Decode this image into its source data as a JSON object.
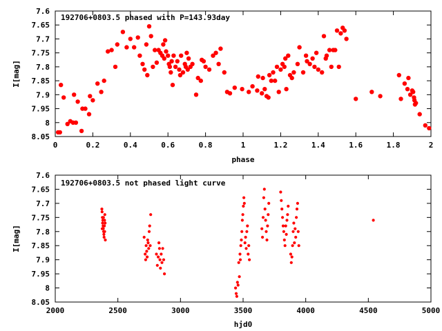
{
  "chart_data": [
    {
      "type": "scatter",
      "title": "192706+0803.5 phased with P=143.93day",
      "xlabel": "phase",
      "ylabel": "I[mag]",
      "xlim": [
        0,
        2
      ],
      "ylim": [
        8.05,
        7.6
      ],
      "y_inverted": true,
      "grid": false,
      "legend": "none",
      "marker": "filled-circle",
      "color": "#ff0000",
      "x_ticks": [
        "0",
        "0.2",
        "0.4",
        "0.6",
        "0.8",
        "1",
        "1.2",
        "1.4",
        "1.6",
        "1.8",
        "2"
      ],
      "y_ticks": [
        "7.6",
        "7.65",
        "7.7",
        "7.75",
        "7.8",
        "7.85",
        "7.9",
        "7.95",
        "8",
        "8.05"
      ],
      "points": [
        [
          0.015,
          8.035
        ],
        [
          0.025,
          8.035
        ],
        [
          0.03,
          7.865
        ],
        [
          0.045,
          7.91
        ],
        [
          0.065,
          8.005
        ],
        [
          0.08,
          7.995
        ],
        [
          0.095,
          8.0
        ],
        [
          0.1,
          7.9
        ],
        [
          0.11,
          8.0
        ],
        [
          0.12,
          7.925
        ],
        [
          0.14,
          8.03
        ],
        [
          0.145,
          7.95
        ],
        [
          0.16,
          7.95
        ],
        [
          0.18,
          7.97
        ],
        [
          0.185,
          7.905
        ],
        [
          0.2,
          7.92
        ],
        [
          0.225,
          7.86
        ],
        [
          0.245,
          7.89
        ],
        [
          0.26,
          7.85
        ],
        [
          0.28,
          7.745
        ],
        [
          0.3,
          7.74
        ],
        [
          0.32,
          7.8
        ],
        [
          0.33,
          7.72
        ],
        [
          0.36,
          7.675
        ],
        [
          0.38,
          7.73
        ],
        [
          0.4,
          7.7
        ],
        [
          0.42,
          7.73
        ],
        [
          0.44,
          7.695
        ],
        [
          0.45,
          7.76
        ],
        [
          0.465,
          7.79
        ],
        [
          0.475,
          7.81
        ],
        [
          0.485,
          7.72
        ],
        [
          0.49,
          7.83
        ],
        [
          0.5,
          7.655
        ],
        [
          0.51,
          7.69
        ],
        [
          0.52,
          7.8
        ],
        [
          0.53,
          7.74
        ],
        [
          0.54,
          7.785
        ],
        [
          0.55,
          7.74
        ],
        [
          0.56,
          7.75
        ],
        [
          0.57,
          7.76
        ],
        [
          0.575,
          7.72
        ],
        [
          0.58,
          7.77
        ],
        [
          0.585,
          7.705
        ],
        [
          0.59,
          7.745
        ],
        [
          0.6,
          7.76
        ],
        [
          0.605,
          7.79
        ],
        [
          0.61,
          7.8
        ],
        [
          0.615,
          7.82
        ],
        [
          0.62,
          7.78
        ],
        [
          0.625,
          7.865
        ],
        [
          0.63,
          7.76
        ],
        [
          0.64,
          7.8
        ],
        [
          0.65,
          7.78
        ],
        [
          0.66,
          7.81
        ],
        [
          0.665,
          7.83
        ],
        [
          0.67,
          7.76
        ],
        [
          0.68,
          7.82
        ],
        [
          0.69,
          7.79
        ],
        [
          0.695,
          7.8
        ],
        [
          0.7,
          7.75
        ],
        [
          0.705,
          7.81
        ],
        [
          0.71,
          7.77
        ],
        [
          0.72,
          7.8
        ],
        [
          0.73,
          7.79
        ],
        [
          0.75,
          7.9
        ],
        [
          0.76,
          7.84
        ],
        [
          0.775,
          7.85
        ],
        [
          0.78,
          7.775
        ],
        [
          0.79,
          7.78
        ],
        [
          0.8,
          7.8
        ],
        [
          0.82,
          7.81
        ],
        [
          0.84,
          7.76
        ],
        [
          0.855,
          7.75
        ],
        [
          0.87,
          7.79
        ],
        [
          0.88,
          7.735
        ],
        [
          0.9,
          7.82
        ],
        [
          0.915,
          7.89
        ],
        [
          0.93,
          7.895
        ],
        [
          0.955,
          7.875
        ],
        [
          0.995,
          7.88
        ],
        [
          1.03,
          7.89
        ],
        [
          1.05,
          7.87
        ],
        [
          1.075,
          7.885
        ],
        [
          1.08,
          7.835
        ],
        [
          1.1,
          7.895
        ],
        [
          1.105,
          7.84
        ],
        [
          1.115,
          7.88
        ],
        [
          1.125,
          7.905
        ],
        [
          1.135,
          7.91
        ],
        [
          1.14,
          7.83
        ],
        [
          1.15,
          7.85
        ],
        [
          1.16,
          7.82
        ],
        [
          1.17,
          7.85
        ],
        [
          1.18,
          7.8
        ],
        [
          1.19,
          7.89
        ],
        [
          1.2,
          7.81
        ],
        [
          1.21,
          7.79
        ],
        [
          1.22,
          7.8
        ],
        [
          1.225,
          7.77
        ],
        [
          1.23,
          7.88
        ],
        [
          1.24,
          7.76
        ],
        [
          1.25,
          7.83
        ],
        [
          1.26,
          7.84
        ],
        [
          1.27,
          7.82
        ],
        [
          1.29,
          7.79
        ],
        [
          1.3,
          7.73
        ],
        [
          1.32,
          7.82
        ],
        [
          1.335,
          7.76
        ],
        [
          1.34,
          7.78
        ],
        [
          1.355,
          7.79
        ],
        [
          1.37,
          7.77
        ],
        [
          1.38,
          7.8
        ],
        [
          1.39,
          7.75
        ],
        [
          1.4,
          7.81
        ],
        [
          1.42,
          7.82
        ],
        [
          1.43,
          7.69
        ],
        [
          1.44,
          7.77
        ],
        [
          1.445,
          7.76
        ],
        [
          1.46,
          7.74
        ],
        [
          1.47,
          7.8
        ],
        [
          1.48,
          7.74
        ],
        [
          1.49,
          7.74
        ],
        [
          1.5,
          7.67
        ],
        [
          1.51,
          7.8
        ],
        [
          1.52,
          7.68
        ],
        [
          1.53,
          7.66
        ],
        [
          1.54,
          7.67
        ],
        [
          1.55,
          7.7
        ],
        [
          1.6,
          7.915
        ],
        [
          1.685,
          7.89
        ],
        [
          1.73,
          7.905
        ],
        [
          1.83,
          7.83
        ],
        [
          1.84,
          7.915
        ],
        [
          1.86,
          7.86
        ],
        [
          1.875,
          7.88
        ],
        [
          1.88,
          7.84
        ],
        [
          1.89,
          7.9
        ],
        [
          1.9,
          7.885
        ],
        [
          1.905,
          7.89
        ],
        [
          1.91,
          7.91
        ],
        [
          1.912,
          7.92
        ],
        [
          1.915,
          7.935
        ],
        [
          1.92,
          7.93
        ],
        [
          1.94,
          7.97
        ],
        [
          1.97,
          8.01
        ],
        [
          1.99,
          8.02
        ]
      ]
    },
    {
      "type": "scatter",
      "title": "192706+0803.5 not phased light curve",
      "xlabel": "hjd0",
      "ylabel": "I[mag]",
      "xlim": [
        2000,
        5000
      ],
      "ylim": [
        8.05,
        7.6
      ],
      "y_inverted": true,
      "grid": false,
      "legend": "none",
      "marker": "small-filled-circle",
      "color": "#ff0000",
      "x_ticks": [
        "2000",
        "2500",
        "3000",
        "3500",
        "4000",
        "4500",
        "5000"
      ],
      "y_ticks": [
        "7.6",
        "7.65",
        "7.7",
        "7.75",
        "7.8",
        "7.85",
        "7.9",
        "7.95",
        "8",
        "8.05"
      ],
      "points": [
        [
          2372,
          7.72
        ],
        [
          2374,
          7.73
        ],
        [
          2376,
          7.75
        ],
        [
          2378,
          7.77
        ],
        [
          2380,
          7.76
        ],
        [
          2382,
          7.78
        ],
        [
          2384,
          7.79
        ],
        [
          2386,
          7.8
        ],
        [
          2388,
          7.81
        ],
        [
          2390,
          7.82
        ],
        [
          2392,
          7.78
        ],
        [
          2394,
          7.76
        ],
        [
          2396,
          7.74
        ],
        [
          2398,
          7.77
        ],
        [
          2400,
          7.83
        ],
        [
          2375,
          7.79
        ],
        [
          2385,
          7.75
        ],
        [
          2395,
          7.8
        ],
        [
          2710,
          7.82
        ],
        [
          2718,
          7.88
        ],
        [
          2722,
          7.9
        ],
        [
          2726,
          7.85
        ],
        [
          2730,
          7.87
        ],
        [
          2734,
          7.89
        ],
        [
          2738,
          7.83
        ],
        [
          2742,
          7.84
        ],
        [
          2746,
          7.86
        ],
        [
          2750,
          7.8
        ],
        [
          2754,
          7.78
        ],
        [
          2758,
          7.85
        ],
        [
          2762,
          7.74
        ],
        [
          2808,
          7.88
        ],
        [
          2815,
          7.92
        ],
        [
          2822,
          7.89
        ],
        [
          2828,
          7.84
        ],
        [
          2832,
          7.86
        ],
        [
          2836,
          7.9
        ],
        [
          2840,
          7.93
        ],
        [
          2846,
          7.88
        ],
        [
          2852,
          7.91
        ],
        [
          2858,
          7.86
        ],
        [
          2866,
          7.9
        ],
        [
          2872,
          7.95
        ],
        [
          3440,
          8.0
        ],
        [
          3445,
          8.02
        ],
        [
          3450,
          8.03
        ],
        [
          3455,
          7.98
        ],
        [
          3460,
          7.99
        ],
        [
          3465,
          7.91
        ],
        [
          3470,
          7.96
        ],
        [
          3475,
          7.88
        ],
        [
          3478,
          7.9
        ],
        [
          3482,
          7.85
        ],
        [
          3486,
          7.83
        ],
        [
          3490,
          7.8
        ],
        [
          3494,
          7.76
        ],
        [
          3498,
          7.74
        ],
        [
          3502,
          7.71
        ],
        [
          3506,
          7.68
        ],
        [
          3510,
          7.7
        ],
        [
          3515,
          7.84
        ],
        [
          3520,
          7.82
        ],
        [
          3525,
          7.86
        ],
        [
          3530,
          7.8
        ],
        [
          3535,
          7.78
        ],
        [
          3540,
          7.88
        ],
        [
          3545,
          7.85
        ],
        [
          3550,
          7.9
        ],
        [
          3650,
          7.79
        ],
        [
          3655,
          7.82
        ],
        [
          3660,
          7.75
        ],
        [
          3665,
          7.68
        ],
        [
          3670,
          7.65
        ],
        [
          3675,
          7.72
        ],
        [
          3680,
          7.76
        ],
        [
          3685,
          7.8
        ],
        [
          3690,
          7.83
        ],
        [
          3695,
          7.78
        ],
        [
          3700,
          7.74
        ],
        [
          3705,
          7.7
        ],
        [
          3800,
          7.66
        ],
        [
          3805,
          7.69
        ],
        [
          3810,
          7.72
        ],
        [
          3815,
          7.75
        ],
        [
          3820,
          7.78
        ],
        [
          3825,
          7.8
        ],
        [
          3830,
          7.83
        ],
        [
          3835,
          7.85
        ],
        [
          3840,
          7.78
        ],
        [
          3845,
          7.81
        ],
        [
          3850,
          7.76
        ],
        [
          3855,
          7.74
        ],
        [
          3860,
          7.71
        ],
        [
          3880,
          7.88
        ],
        [
          3885,
          7.91
        ],
        [
          3890,
          7.89
        ],
        [
          3895,
          7.85
        ],
        [
          3900,
          7.8
        ],
        [
          3905,
          7.77
        ],
        [
          3910,
          7.84
        ],
        [
          3915,
          7.79
        ],
        [
          3920,
          7.82
        ],
        [
          3925,
          7.75
        ],
        [
          3930,
          7.72
        ],
        [
          3935,
          7.7
        ],
        [
          3940,
          7.8
        ],
        [
          3945,
          7.85
        ],
        [
          4540,
          7.76
        ]
      ]
    }
  ]
}
